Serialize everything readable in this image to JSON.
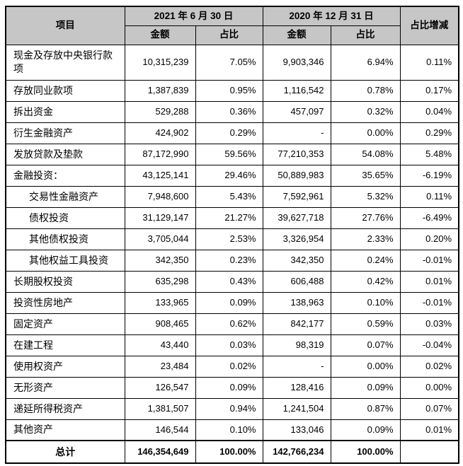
{
  "colors": {
    "header_bg": "#c6c6c6",
    "border": "#000000",
    "page_bg": "#ffffff",
    "text": "#000000"
  },
  "table": {
    "header": {
      "item_label": "项目",
      "period_2021": "2021 年 6 月 30 日",
      "period_2020": "2020 年 12 月 31 日",
      "amount_label": "金额",
      "ratio_label": "占比",
      "change_label": "占比增减"
    },
    "rows": [
      {
        "label": "现金及存放中央银行款项",
        "indent": false,
        "tall": true,
        "total": false,
        "amount_2021": "10,315,239",
        "ratio_2021": "7.05%",
        "amount_2020": "9,903,346",
        "ratio_2020": "6.94%",
        "change": "0.11%"
      },
      {
        "label": "存放同业款项",
        "indent": false,
        "tall": false,
        "total": false,
        "amount_2021": "1,387,839",
        "ratio_2021": "0.95%",
        "amount_2020": "1,116,542",
        "ratio_2020": "0.78%",
        "change": "0.17%"
      },
      {
        "label": "拆出资金",
        "indent": false,
        "tall": false,
        "total": false,
        "amount_2021": "529,288",
        "ratio_2021": "0.36%",
        "amount_2020": "457,097",
        "ratio_2020": "0.32%",
        "change": "0.04%"
      },
      {
        "label": "衍生金融资产",
        "indent": false,
        "tall": false,
        "total": false,
        "amount_2021": "424,902",
        "ratio_2021": "0.29%",
        "amount_2020": "-",
        "ratio_2020": "0.00%",
        "change": "0.29%"
      },
      {
        "label": "发放贷款及垫款",
        "indent": false,
        "tall": false,
        "total": false,
        "amount_2021": "87,172,990",
        "ratio_2021": "59.56%",
        "amount_2020": "77,210,353",
        "ratio_2020": "54.08%",
        "change": "5.48%"
      },
      {
        "label": "金融投资：",
        "indent": false,
        "tall": false,
        "total": false,
        "amount_2021": "43,125,141",
        "ratio_2021": "29.46%",
        "amount_2020": "50,889,983",
        "ratio_2020": "35.65%",
        "change": "-6.19%"
      },
      {
        "label": "交易性金融资产",
        "indent": true,
        "tall": false,
        "total": false,
        "amount_2021": "7,948,600",
        "ratio_2021": "5.43%",
        "amount_2020": "7,592,961",
        "ratio_2020": "5.32%",
        "change": "0.11%"
      },
      {
        "label": "债权投资",
        "indent": true,
        "tall": false,
        "total": false,
        "amount_2021": "31,129,147",
        "ratio_2021": "21.27%",
        "amount_2020": "39,627,718",
        "ratio_2020": "27.76%",
        "change": "-6.49%"
      },
      {
        "label": "其他债权投资",
        "indent": true,
        "tall": false,
        "total": false,
        "amount_2021": "3,705,044",
        "ratio_2021": "2.53%",
        "amount_2020": "3,326,954",
        "ratio_2020": "2.33%",
        "change": "0.20%"
      },
      {
        "label": "其他权益工具投资",
        "indent": true,
        "tall": false,
        "total": false,
        "amount_2021": "342,350",
        "ratio_2021": "0.23%",
        "amount_2020": "342,350",
        "ratio_2020": "0.24%",
        "change": "-0.01%"
      },
      {
        "label": "长期股权投资",
        "indent": false,
        "tall": false,
        "total": false,
        "amount_2021": "635,298",
        "ratio_2021": "0.43%",
        "amount_2020": "606,488",
        "ratio_2020": "0.42%",
        "change": "0.01%"
      },
      {
        "label": "投资性房地产",
        "indent": false,
        "tall": false,
        "total": false,
        "amount_2021": "133,965",
        "ratio_2021": "0.09%",
        "amount_2020": "138,963",
        "ratio_2020": "0.10%",
        "change": "-0.01%"
      },
      {
        "label": "固定资产",
        "indent": false,
        "tall": false,
        "total": false,
        "amount_2021": "908,465",
        "ratio_2021": "0.62%",
        "amount_2020": "842,177",
        "ratio_2020": "0.59%",
        "change": "0.03%"
      },
      {
        "label": "在建工程",
        "indent": false,
        "tall": false,
        "total": false,
        "amount_2021": "43,440",
        "ratio_2021": "0.03%",
        "amount_2020": "98,319",
        "ratio_2020": "0.07%",
        "change": "-0.04%"
      },
      {
        "label": "使用权资产",
        "indent": false,
        "tall": false,
        "total": false,
        "amount_2021": "23,484",
        "ratio_2021": "0.02%",
        "amount_2020": "-",
        "ratio_2020": "0.00%",
        "change": "0.02%"
      },
      {
        "label": "无形资产",
        "indent": false,
        "tall": false,
        "total": false,
        "amount_2021": "126,547",
        "ratio_2021": "0.09%",
        "amount_2020": "128,416",
        "ratio_2020": "0.09%",
        "change": "0.00%"
      },
      {
        "label": "递延所得税资产",
        "indent": false,
        "tall": false,
        "total": false,
        "amount_2021": "1,381,507",
        "ratio_2021": "0.94%",
        "amount_2020": "1,241,504",
        "ratio_2020": "0.87%",
        "change": "0.07%"
      },
      {
        "label": "其他资产",
        "indent": false,
        "tall": false,
        "total": false,
        "amount_2021": "146,544",
        "ratio_2021": "0.10%",
        "amount_2020": "133,046",
        "ratio_2020": "0.09%",
        "change": "0.01%"
      },
      {
        "label": "总计",
        "indent": false,
        "tall": false,
        "total": true,
        "amount_2021": "146,354,649",
        "ratio_2021": "100.00%",
        "amount_2020": "142,766,234",
        "ratio_2020": "100.00%",
        "change": ""
      }
    ]
  }
}
